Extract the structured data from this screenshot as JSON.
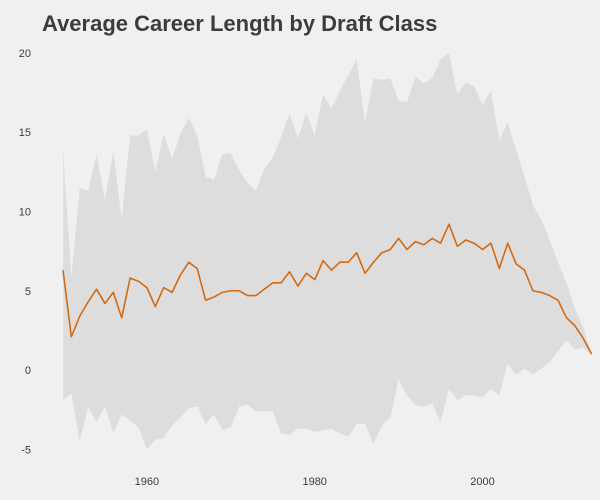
{
  "chart_data": {
    "type": "line",
    "title": "Average Career Length by Draft Class",
    "xlabel": "",
    "ylabel": "",
    "xlim": [
      1947.5,
      2014
    ],
    "ylim": [
      -5.8,
      20.5
    ],
    "xticks": [
      1960,
      1980,
      2000
    ],
    "yticks": [
      -5,
      0,
      5,
      10,
      15,
      20
    ],
    "grid": false,
    "colors": {
      "background": "#f0f0f0",
      "band": "#dddddd",
      "line": "#d46a12",
      "text": "#3c3c3c"
    },
    "x": [
      1950,
      1951,
      1952,
      1953,
      1954,
      1955,
      1956,
      1957,
      1958,
      1959,
      1960,
      1961,
      1962,
      1963,
      1964,
      1965,
      1966,
      1967,
      1968,
      1969,
      1970,
      1971,
      1972,
      1973,
      1974,
      1975,
      1976,
      1977,
      1978,
      1979,
      1980,
      1981,
      1982,
      1983,
      1984,
      1985,
      1986,
      1987,
      1988,
      1989,
      1990,
      1991,
      1992,
      1993,
      1994,
      1995,
      1996,
      1997,
      1998,
      1999,
      2000,
      2001,
      2002,
      2003,
      2004,
      2005,
      2006,
      2007,
      2008,
      2009,
      2010,
      2011,
      2012,
      2013
    ],
    "series": [
      {
        "values": [
          6.3,
          2.1,
          3.4,
          4.3,
          5.1,
          4.2,
          4.9,
          3.3,
          5.8,
          5.6,
          5.2,
          4.0,
          5.2,
          4.9,
          6.0,
          6.8,
          6.4,
          4.4,
          4.6,
          4.9,
          5.0,
          5.0,
          4.7,
          4.7,
          5.1,
          5.5,
          5.5,
          6.2,
          5.3,
          6.1,
          5.7,
          6.9,
          6.3,
          6.8,
          6.8,
          7.4,
          6.1,
          6.8,
          7.4,
          7.6,
          8.3,
          7.6,
          8.1,
          7.9,
          8.3,
          8.0,
          9.2,
          7.8,
          8.2,
          8.0,
          7.6,
          8.0,
          6.4,
          8.0,
          6.7,
          6.3,
          5.0,
          4.9,
          4.7,
          4.4,
          3.3,
          2.8,
          2.0,
          1.0
        ],
        "lower": [
          -1.9,
          -1.5,
          -4.5,
          -2.3,
          -3.3,
          -2.3,
          -4.0,
          -2.8,
          -3.2,
          -3.6,
          -5.0,
          -4.4,
          -4.3,
          -3.5,
          -3.0,
          -2.4,
          -2.3,
          -3.4,
          -2.8,
          -3.8,
          -3.6,
          -2.3,
          -2.2,
          -2.6,
          -2.6,
          -2.6,
          -4.0,
          -4.1,
          -3.7,
          -3.7,
          -3.9,
          -3.8,
          -3.7,
          -4.0,
          -4.2,
          -3.4,
          -3.4,
          -4.7,
          -3.5,
          -3.0,
          -0.6,
          -1.6,
          -2.2,
          -2.3,
          -2.1,
          -3.3,
          -1.2,
          -1.9,
          -1.6,
          -1.6,
          -1.7,
          -1.2,
          -1.6,
          0.4,
          -0.3,
          0.1,
          -0.3,
          0.1,
          0.5,
          1.2,
          1.9,
          1.3,
          1.4,
          1.0
        ],
        "upper": [
          13.9,
          5.9,
          11.5,
          11.3,
          13.6,
          10.7,
          13.8,
          9.5,
          14.8,
          14.8,
          15.2,
          12.5,
          14.9,
          13.3,
          14.9,
          15.9,
          14.8,
          12.2,
          12.0,
          13.6,
          13.7,
          12.6,
          11.8,
          11.3,
          12.7,
          13.4,
          14.7,
          16.2,
          14.6,
          16.2,
          14.8,
          17.4,
          16.5,
          17.6,
          18.6,
          19.6,
          15.6,
          18.4,
          18.3,
          18.4,
          17.0,
          16.9,
          18.5,
          18.1,
          18.4,
          19.6,
          20.0,
          17.4,
          18.1,
          17.9,
          16.7,
          17.6,
          14.5,
          15.6,
          13.9,
          12.2,
          10.4,
          9.5,
          8.2,
          6.8,
          5.5,
          3.9,
          2.7,
          1.0
        ]
      }
    ]
  }
}
